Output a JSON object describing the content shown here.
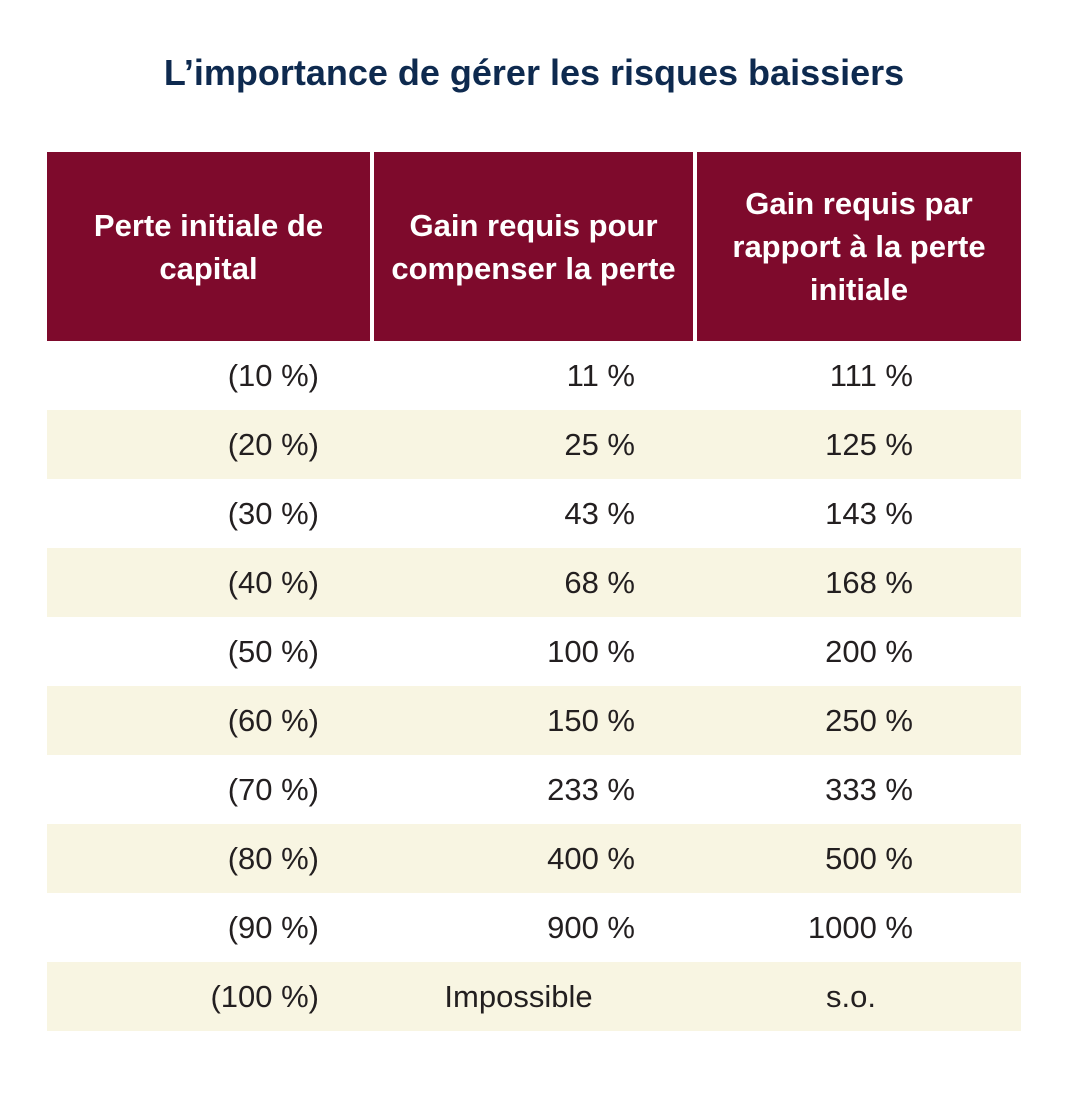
{
  "chart_data": {
    "type": "table",
    "title": "L’importance de gérer les risques baissiers",
    "columns": [
      "Perte initiale de capital",
      "Gain requis pour compenser la perte",
      "Gain requis par rapport à la perte initiale"
    ],
    "rows": [
      [
        "(10 %)",
        "11 %",
        "111 %"
      ],
      [
        "(20 %)",
        "25 %",
        "125 %"
      ],
      [
        "(30 %)",
        "43 %",
        "143 %"
      ],
      [
        "(40 %)",
        "68 %",
        "168 %"
      ],
      [
        "(50 %)",
        "100 %",
        "200 %"
      ],
      [
        "(60 %)",
        "150 %",
        "250 %"
      ],
      [
        "(70 %)",
        "233 %",
        "333 %"
      ],
      [
        "(80 %)",
        "400 %",
        "500 %"
      ],
      [
        "(90 %)",
        "900 %",
        "1000 %"
      ],
      [
        "(100 %)",
        "Impossible",
        "s.o."
      ]
    ],
    "values": {
      "initial_loss_pct": [
        10,
        20,
        30,
        40,
        50,
        60,
        70,
        80,
        90,
        100
      ],
      "gain_required_pct": [
        11,
        25,
        43,
        68,
        100,
        150,
        233,
        400,
        900,
        null
      ],
      "gain_vs_initial_pct": [
        111,
        125,
        143,
        168,
        200,
        250,
        333,
        500,
        1000,
        null
      ]
    }
  },
  "colors": {
    "title": "#0e2a4f",
    "header_bg": "#7e0a2c",
    "header_text": "#ffffff",
    "row_shade": "#f8f5e2",
    "row_plain": "#ffffff",
    "cell_text": "#231f20"
  }
}
